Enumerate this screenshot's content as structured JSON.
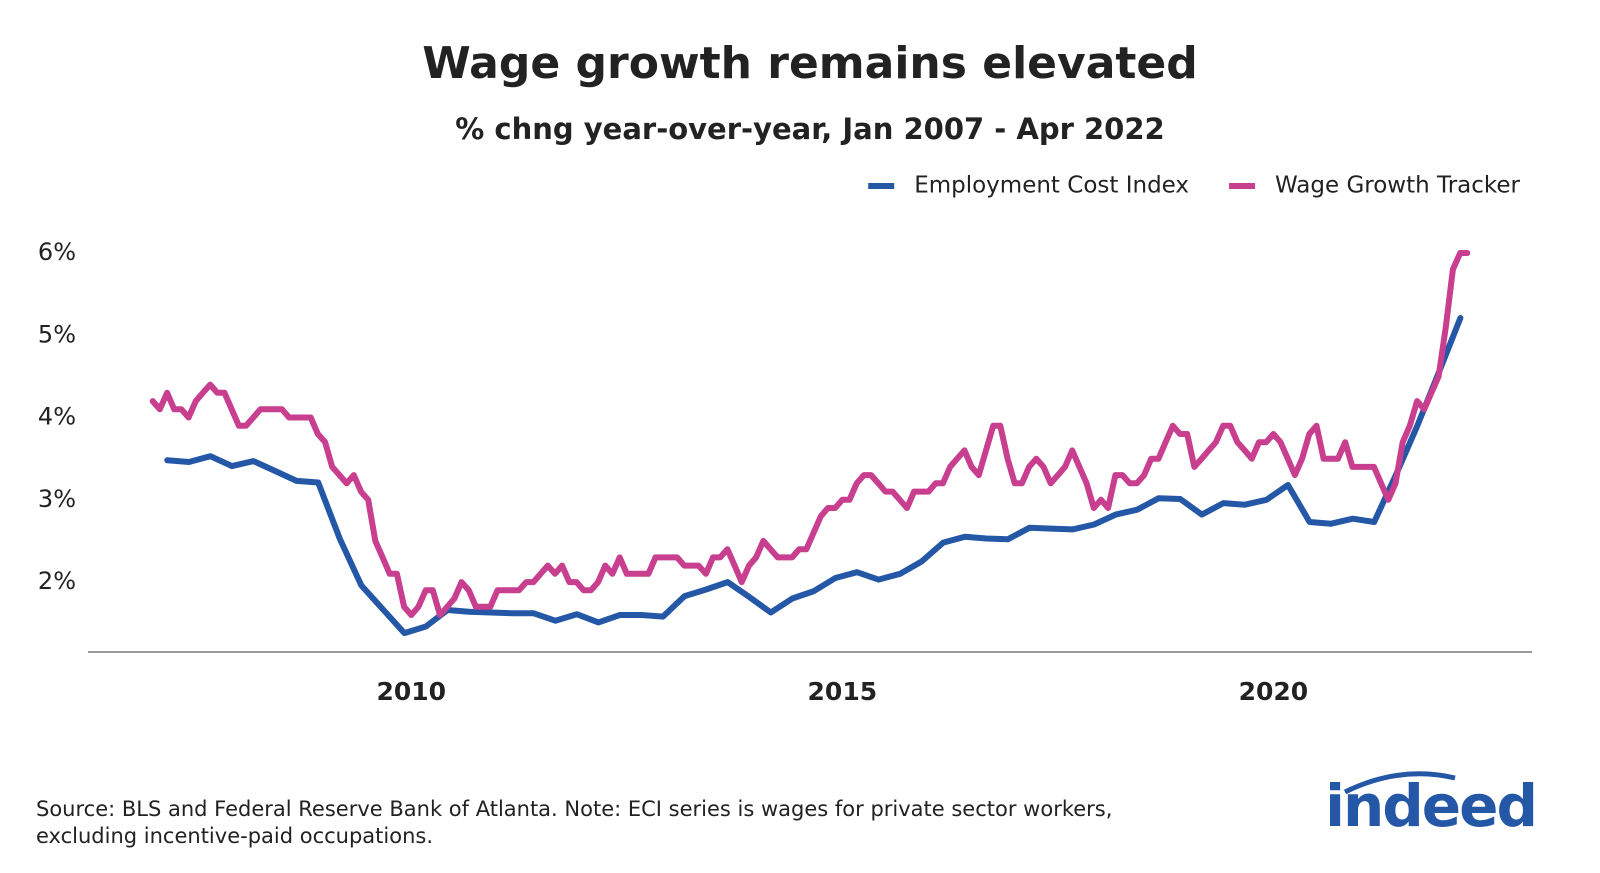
{
  "chart_data": {
    "type": "line",
    "title": "Wage growth remains elevated",
    "subtitle": "% chng year-over-year, Jan 2007 - Apr 2022",
    "note": [
      "Source: BLS and Federal Reserve Bank of Atlanta. Note: ECI series is wages for private sector workers,",
      " excluding incentive-paid occupations."
    ],
    "logo": "indeed",
    "legend": "top-right",
    "xlim": [
      2006.25,
      2023.0
    ],
    "xticks": [
      2010,
      2015,
      2020
    ],
    "ylim": [
      1.15,
      6.3
    ],
    "yticks": [
      {
        "value": 2,
        "label": "2%"
      },
      {
        "value": 3,
        "label": "3%"
      },
      {
        "value": 4,
        "label": "4%"
      },
      {
        "value": 5,
        "label": "5%"
      },
      {
        "value": 6,
        "label": "6%"
      }
    ],
    "series": [
      {
        "name": "Employment Cost Index",
        "color": "#2557a7",
        "x": [
          2007.17,
          2007.42,
          2007.67,
          2007.92,
          2008.17,
          2008.42,
          2008.67,
          2008.92,
          2009.17,
          2009.42,
          2009.67,
          2009.92,
          2010.17,
          2010.42,
          2010.67,
          2010.92,
          2011.17,
          2011.42,
          2011.67,
          2011.92,
          2012.17,
          2012.42,
          2012.67,
          2012.92,
          2013.17,
          2013.42,
          2013.67,
          2013.92,
          2014.17,
          2014.42,
          2014.67,
          2014.92,
          2015.17,
          2015.42,
          2015.67,
          2015.92,
          2016.17,
          2016.42,
          2016.67,
          2016.92,
          2017.17,
          2017.42,
          2017.67,
          2017.92,
          2018.17,
          2018.42,
          2018.67,
          2018.92,
          2019.17,
          2019.42,
          2019.67,
          2019.92,
          2020.17,
          2020.42,
          2020.67,
          2020.92,
          2021.17,
          2021.42,
          2021.67,
          2021.92,
          2022.17
        ],
        "values": [
          3.48,
          3.46,
          3.53,
          3.41,
          3.47,
          3.35,
          3.23,
          3.21,
          2.53,
          1.96,
          1.67,
          1.38,
          1.46,
          1.66,
          1.64,
          1.63,
          1.62,
          1.62,
          1.53,
          1.61,
          1.51,
          1.6,
          1.6,
          1.58,
          1.83,
          1.91,
          2.0,
          1.82,
          1.63,
          1.8,
          1.89,
          2.05,
          2.12,
          2.03,
          2.1,
          2.25,
          2.48,
          2.55,
          2.53,
          2.52,
          2.66,
          2.65,
          2.64,
          2.7,
          2.82,
          2.88,
          3.02,
          3.01,
          2.82,
          2.96,
          2.94,
          3.0,
          3.18,
          2.73,
          2.71,
          2.77,
          2.73,
          3.3,
          3.9,
          4.55,
          5.21
        ]
      },
      {
        "name": "Wage Growth Tracker",
        "color": "#c83f8f",
        "x": [
          2007.0,
          2007.083,
          2007.167,
          2007.25,
          2007.333,
          2007.417,
          2007.5,
          2007.583,
          2007.667,
          2007.75,
          2007.833,
          2007.917,
          2008.0,
          2008.083,
          2008.167,
          2008.25,
          2008.333,
          2008.417,
          2008.5,
          2008.583,
          2008.667,
          2008.75,
          2008.833,
          2008.917,
          2009.0,
          2009.083,
          2009.167,
          2009.25,
          2009.333,
          2009.417,
          2009.5,
          2009.583,
          2009.667,
          2009.75,
          2009.833,
          2009.917,
          2010.0,
          2010.083,
          2010.167,
          2010.25,
          2010.333,
          2010.417,
          2010.5,
          2010.583,
          2010.667,
          2010.75,
          2010.833,
          2010.917,
          2011.0,
          2011.083,
          2011.167,
          2011.25,
          2011.333,
          2011.417,
          2011.5,
          2011.583,
          2011.667,
          2011.75,
          2011.833,
          2011.917,
          2012.0,
          2012.083,
          2012.167,
          2012.25,
          2012.333,
          2012.417,
          2012.5,
          2012.583,
          2012.667,
          2012.75,
          2012.833,
          2012.917,
          2013.0,
          2013.083,
          2013.167,
          2013.25,
          2013.333,
          2013.417,
          2013.5,
          2013.583,
          2013.667,
          2013.75,
          2013.833,
          2013.917,
          2014.0,
          2014.083,
          2014.167,
          2014.25,
          2014.333,
          2014.417,
          2014.5,
          2014.583,
          2014.667,
          2014.75,
          2014.833,
          2014.917,
          2015.0,
          2015.083,
          2015.167,
          2015.25,
          2015.333,
          2015.417,
          2015.5,
          2015.583,
          2015.667,
          2015.75,
          2015.833,
          2015.917,
          2016.0,
          2016.083,
          2016.167,
          2016.25,
          2016.333,
          2016.417,
          2016.5,
          2016.583,
          2016.667,
          2016.75,
          2016.833,
          2016.917,
          2017.0,
          2017.083,
          2017.167,
          2017.25,
          2017.333,
          2017.417,
          2017.5,
          2017.583,
          2017.667,
          2017.75,
          2017.833,
          2017.917,
          2018.0,
          2018.083,
          2018.167,
          2018.25,
          2018.333,
          2018.417,
          2018.5,
          2018.583,
          2018.667,
          2018.75,
          2018.833,
          2018.917,
          2019.0,
          2019.083,
          2019.167,
          2019.25,
          2019.333,
          2019.417,
          2019.5,
          2019.583,
          2019.667,
          2019.75,
          2019.833,
          2019.917,
          2020.0,
          2020.083,
          2020.167,
          2020.25,
          2020.333,
          2020.417,
          2020.5,
          2020.583,
          2020.667,
          2020.75,
          2020.833,
          2020.917,
          2021.0,
          2021.083,
          2021.167,
          2021.25,
          2021.333,
          2021.417,
          2021.5,
          2021.583,
          2021.667,
          2021.75,
          2021.833,
          2021.917,
          2022.0,
          2022.083,
          2022.167,
          2022.25
        ],
        "values": [
          4.2,
          4.1,
          4.3,
          4.1,
          4.1,
          4.0,
          4.2,
          4.3,
          4.4,
          4.3,
          4.3,
          4.1,
          3.9,
          3.9,
          4.0,
          4.1,
          4.1,
          4.1,
          4.1,
          4.0,
          4.0,
          4.0,
          4.0,
          3.8,
          3.7,
          3.4,
          3.3,
          3.2,
          3.3,
          3.1,
          3.0,
          2.5,
          2.3,
          2.1,
          2.1,
          1.7,
          1.6,
          1.7,
          1.9,
          1.9,
          1.6,
          1.7,
          1.8,
          2.0,
          1.9,
          1.7,
          1.7,
          1.7,
          1.9,
          1.9,
          1.9,
          1.9,
          2.0,
          2.0,
          2.1,
          2.2,
          2.1,
          2.2,
          2.0,
          2.0,
          1.9,
          1.9,
          2.0,
          2.2,
          2.1,
          2.3,
          2.1,
          2.1,
          2.1,
          2.1,
          2.3,
          2.3,
          2.3,
          2.3,
          2.2,
          2.2,
          2.2,
          2.1,
          2.3,
          2.3,
          2.4,
          2.2,
          2.0,
          2.2,
          2.3,
          2.5,
          2.4,
          2.3,
          2.3,
          2.3,
          2.4,
          2.4,
          2.6,
          2.8,
          2.9,
          2.9,
          3.0,
          3.0,
          3.2,
          3.3,
          3.3,
          3.2,
          3.1,
          3.1,
          3.0,
          2.9,
          3.1,
          3.1,
          3.1,
          3.2,
          3.2,
          3.4,
          3.5,
          3.6,
          3.4,
          3.3,
          3.6,
          3.9,
          3.9,
          3.5,
          3.2,
          3.2,
          3.4,
          3.5,
          3.4,
          3.2,
          3.3,
          3.4,
          3.6,
          3.4,
          3.2,
          2.9,
          3.0,
          2.9,
          3.3,
          3.3,
          3.2,
          3.2,
          3.3,
          3.5,
          3.5,
          3.7,
          3.9,
          3.8,
          3.8,
          3.4,
          3.5,
          3.6,
          3.7,
          3.9,
          3.9,
          3.7,
          3.6,
          3.5,
          3.7,
          3.7,
          3.8,
          3.7,
          3.5,
          3.3,
          3.5,
          3.8,
          3.9,
          3.5,
          3.5,
          3.5,
          3.7,
          3.4,
          3.4,
          3.4,
          3.4,
          3.2,
          3.0,
          3.2,
          3.7,
          3.9,
          4.2,
          4.1,
          4.3,
          4.5,
          5.1,
          5.8,
          6.0,
          6.0
        ]
      }
    ]
  }
}
